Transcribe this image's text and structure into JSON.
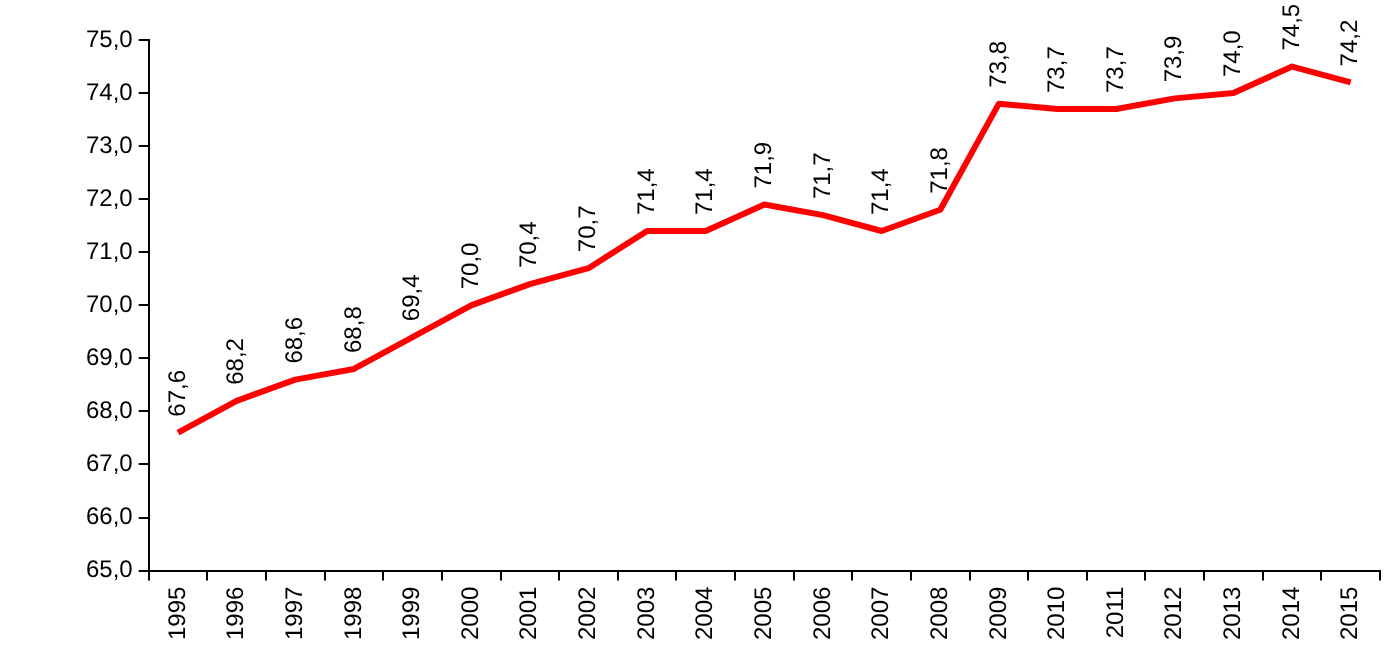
{
  "chart_data": {
    "type": "line",
    "categories": [
      "1995",
      "1996",
      "1997",
      "1998",
      "1999",
      "2000",
      "2001",
      "2002",
      "2003",
      "2004",
      "2005",
      "2006",
      "2007",
      "2008",
      "2009",
      "2010",
      "2011",
      "2012",
      "2013",
      "2014",
      "2015"
    ],
    "series": [
      {
        "color": "#ff0000",
        "values": [
          67.6,
          68.2,
          68.6,
          68.8,
          69.4,
          70.0,
          70.4,
          70.7,
          71.4,
          71.4,
          71.9,
          71.7,
          71.4,
          71.8,
          73.8,
          73.7,
          73.7,
          73.9,
          74.0,
          74.5,
          74.2
        ],
        "value_labels": [
          "67,6",
          "68,2",
          "68,6",
          "68,8",
          "69,4",
          "70,0",
          "70,4",
          "70,7",
          "71,4",
          "71,4",
          "71,9",
          "71,7",
          "71,4",
          "71,8",
          "73,8",
          "73,7",
          "73,7",
          "73,9",
          "74,0",
          "74,5",
          "74,2"
        ]
      }
    ],
    "ylim": [
      65,
      75
    ],
    "yticks": [
      {
        "value": 65,
        "label": "65,0"
      },
      {
        "value": 66,
        "label": "66,0"
      },
      {
        "value": 67,
        "label": "67,0"
      },
      {
        "value": 68,
        "label": "68,0"
      },
      {
        "value": 69,
        "label": "69,0"
      },
      {
        "value": 70,
        "label": "70,0"
      },
      {
        "value": 71,
        "label": "71,0"
      },
      {
        "value": 72,
        "label": "72,0"
      },
      {
        "value": 73,
        "label": "73,0"
      },
      {
        "value": 74,
        "label": "74,0"
      },
      {
        "value": 75,
        "label": "75,0"
      }
    ],
    "grid": false,
    "legend": false,
    "marker": "none",
    "line_style": "solid"
  }
}
